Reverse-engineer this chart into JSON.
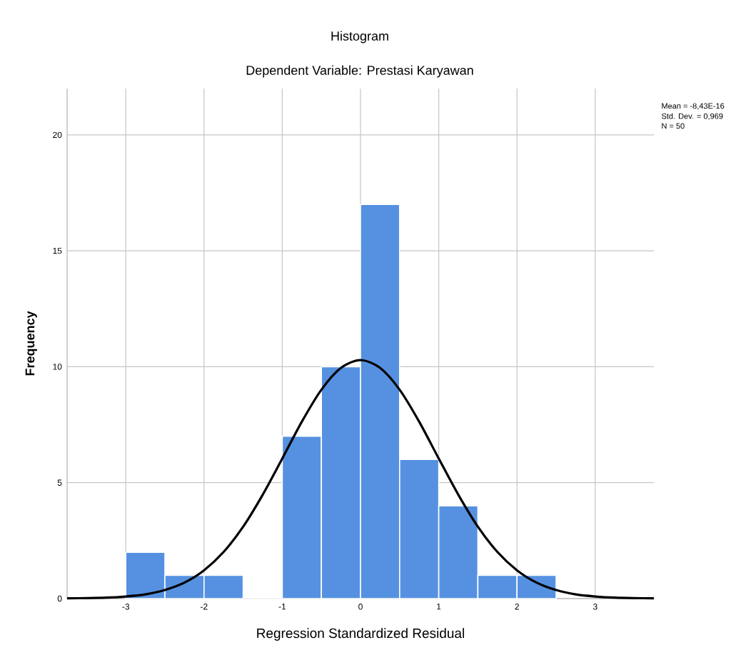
{
  "chart_data": {
    "type": "histogram",
    "title": "Histogram",
    "subtitle": "Dependent Variable: Prestasi Karyawan",
    "xlabel": "Regression Standardized Residual",
    "ylabel": "Frequency",
    "series": [
      {
        "color": "#5591e0",
        "bins": [
          -3,
          -2.5,
          -2,
          -1.5,
          -1,
          -0.5,
          0,
          0.5,
          1,
          1.5,
          2,
          2.5
        ],
        "values": [
          2,
          1,
          1,
          0,
          7,
          10,
          17,
          6,
          4,
          1,
          1
        ]
      },
      {
        "type": "line",
        "color": "#000000",
        "x": [
          -3.75,
          -3.5,
          -3.25,
          -3,
          -2.75,
          -2.5,
          -2.25,
          -2,
          -1.75,
          -1.5,
          -1.25,
          -1,
          -0.75,
          -0.5,
          -0.25,
          0,
          0.25,
          0.5,
          0.75,
          1,
          1.25,
          1.5,
          1.75,
          2,
          2.25,
          2.5,
          2.75,
          3,
          3.25,
          3.5,
          3.75
        ],
        "values": [
          0.01,
          0.02,
          0.04,
          0.09,
          0.18,
          0.37,
          0.69,
          1.22,
          2.01,
          3.1,
          4.48,
          6.04,
          7.63,
          9.01,
          9.95,
          10.29,
          9.95,
          9.01,
          7.63,
          6.04,
          4.48,
          3.1,
          2.01,
          1.22,
          0.69,
          0.37,
          0.18,
          0.09,
          0.04,
          0.02,
          0.01
        ]
      }
    ],
    "xlim": [
      -3.75,
      3.75
    ],
    "ylim": [
      0,
      22
    ],
    "xticks": [
      -3,
      -2,
      -1,
      0,
      1,
      2,
      3
    ],
    "yticks": [
      0,
      5,
      10,
      15,
      20
    ],
    "grid": true,
    "annotations": [
      "Mean = -8,43E-16",
      "Std. Dev. = 0,969",
      "N = 50"
    ]
  }
}
